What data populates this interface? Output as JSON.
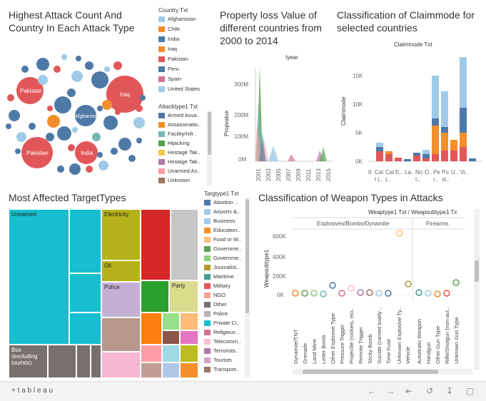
{
  "panel1": {
    "title": "Highest Attack Count And Country In Each Attack Type",
    "bubble_labels": [
      "Pakistan",
      "Iraq",
      "Afghanistan",
      "Pakistan",
      "India"
    ],
    "country_legend": {
      "title": "Country Txt",
      "items": [
        {
          "label": "Afghanistan",
          "color": "#a0cbe8"
        },
        {
          "label": "Chile",
          "color": "#f28e2b"
        },
        {
          "label": "India",
          "color": "#4e79a7"
        },
        {
          "label": "Iraq",
          "color": "#f28e2b"
        },
        {
          "label": "Pakistan",
          "color": "#e15759"
        },
        {
          "label": "Peru",
          "color": "#4e79a7"
        },
        {
          "label": "Spain",
          "color": "#d37295"
        },
        {
          "label": "United States",
          "color": "#a0cbe8"
        }
      ]
    },
    "attack_legend": {
      "title": "Attacktype1 Txt",
      "items": [
        {
          "label": "Armed Assa..",
          "color": "#4e79a7"
        },
        {
          "label": "Assassinatio..",
          "color": "#f28e2b"
        },
        {
          "label": "Facility/Infr..",
          "color": "#76b7b2"
        },
        {
          "label": "Hijacking",
          "color": "#59a14f"
        },
        {
          "label": "Hostage Tak..",
          "color": "#edc948"
        },
        {
          "label": "Hostage Tak..",
          "color": "#b07aa1"
        },
        {
          "label": "Unarmed As..",
          "color": "#ff9da7"
        },
        {
          "label": "Unknown",
          "color": "#9c755f"
        }
      ]
    }
  },
  "panel2": {
    "title": "Property loss Value of different countries  from 2000 to 2014",
    "top_label": "Iyear",
    "ylabel": "Propvalue",
    "yticks": [
      "300M",
      "200M",
      "100M",
      "0M"
    ],
    "xticks": [
      "2001",
      "2003",
      "2005",
      "2007",
      "2009",
      "2011",
      "2013",
      "2015"
    ]
  },
  "panel3": {
    "title": "Classification of Claimmode for selected countries",
    "top_label": "Claimmode Txt",
    "ylabel": "Claimmode",
    "yticks": [
      "15K",
      "10K",
      "5K",
      "0K"
    ],
    "xticks": [
      "0",
      "Cal",
      "Cal",
      "E..",
      "La..",
      "No",
      "O..",
      "Pe",
      "Po",
      "U..",
      "Vi.."
    ],
    "xticks2": [
      "",
      "l (..",
      "(..",
      "",
      "",
      "t..",
      "",
      "r..",
      "st..",
      "",
      "."
    ]
  },
  "panel4": {
    "title": "Most Affected TargetTypes",
    "labels": {
      "unnamed": "Unnamed",
      "electricity": "Electricity",
      "oil": "Oil",
      "police": "Police",
      "party": "Party",
      "bus": "Bus (excluding tourists)",
      "dot": "."
    },
    "legend": {
      "title": "Targtype1 Txt",
      "items": [
        {
          "label": "Abortion ..",
          "color": "#4e79a7"
        },
        {
          "label": "Airports &..",
          "color": "#a0cbe8"
        },
        {
          "label": "Business",
          "color": "#a0cbe8"
        },
        {
          "label": "Education..",
          "color": "#f28e2b"
        },
        {
          "label": "Food or W..",
          "color": "#ffbe7d"
        },
        {
          "label": "Governme..",
          "color": "#59a14f"
        },
        {
          "label": "Governme..",
          "color": "#8cd17d"
        },
        {
          "label": "Journalist..",
          "color": "#b6992d"
        },
        {
          "label": "Maritime",
          "color": "#499894"
        },
        {
          "label": "Military",
          "color": "#e15759"
        },
        {
          "label": "NGO",
          "color": "#ff9d9a"
        },
        {
          "label": "Other",
          "color": "#79706e"
        },
        {
          "label": "Police",
          "color": "#bab0ac"
        },
        {
          "label": "Private Ci..",
          "color": "#17becf"
        },
        {
          "label": "Religious ..",
          "color": "#d37295"
        },
        {
          "label": "Telecomm..",
          "color": "#fabfd2"
        },
        {
          "label": "Terrorists..",
          "color": "#b07aa1"
        },
        {
          "label": "Tourists",
          "color": "#d4a6c8"
        },
        {
          "label": "Transport..",
          "color": "#9d7660"
        }
      ]
    }
  },
  "panel5": {
    "title": "Classification of Weapon Types in Attacks",
    "header": "Weaptype1 Txt / Weapsubtype1 Tx",
    "groups": [
      "Explosives/Bombs/Dynamite",
      "Firearms"
    ],
    "ylabel": "Weapsubtype1",
    "yticks": [
      "600K",
      "400K",
      "200K",
      "0K"
    ],
    "xticks": [
      "Dynamite/TNT",
      "Grenade",
      "Land Mine",
      "Letter Bomb",
      "Other Explosive Type",
      "Pressure Trigger",
      "Projectile (rockets, mo..",
      "Remote Trigger",
      "Sticky Bomb",
      "Suicide (carried bodily ..",
      "Time Fuse",
      "Unknown Explosive Ty..",
      "Vehicle",
      "Automatic Weapon",
      "Handgun",
      "Other Gun Type",
      "Rifle/Shotgun (non-aut..",
      "Unknown Gun Type"
    ]
  },
  "footer": {
    "brand": "+ t a b l e a u",
    "icons": [
      "undo-icon",
      "redo-icon",
      "revert-icon",
      "share-icon",
      "download-icon",
      "fullscreen-icon"
    ]
  }
}
